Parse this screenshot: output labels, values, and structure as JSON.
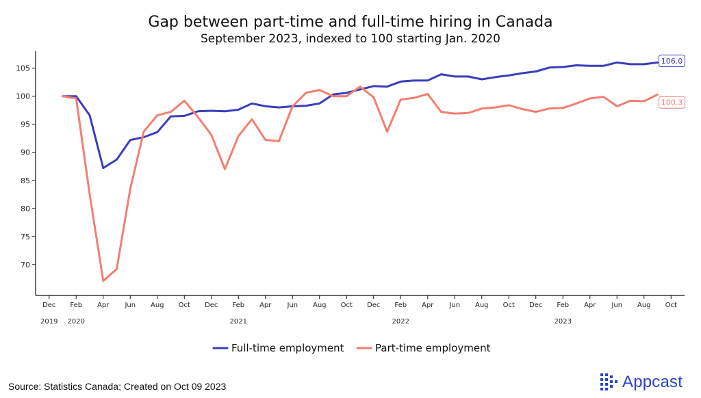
{
  "chart_data": {
    "type": "line",
    "title": "Gap between part-time and full-time hiring in Canada",
    "subtitle": "September 2023, indexed to 100 starting Jan. 2020",
    "x": [
      "2020-01",
      "2020-02",
      "2020-03",
      "2020-04",
      "2020-05",
      "2020-06",
      "2020-07",
      "2020-08",
      "2020-09",
      "2020-10",
      "2020-11",
      "2020-12",
      "2021-01",
      "2021-02",
      "2021-03",
      "2021-04",
      "2021-05",
      "2021-06",
      "2021-07",
      "2021-08",
      "2021-09",
      "2021-10",
      "2021-11",
      "2021-12",
      "2022-01",
      "2022-02",
      "2022-03",
      "2022-04",
      "2022-05",
      "2022-06",
      "2022-07",
      "2022-08",
      "2022-09",
      "2022-10",
      "2022-11",
      "2022-12",
      "2023-01",
      "2023-02",
      "2023-03",
      "2023-04",
      "2023-05",
      "2023-06",
      "2023-07",
      "2023-08",
      "2023-09"
    ],
    "series": [
      {
        "name": "Full-time employment",
        "color": "#3a3dbb",
        "values": [
          100.0,
          100.0,
          96.6,
          87.2,
          88.7,
          92.2,
          92.7,
          93.6,
          96.4,
          96.5,
          97.3,
          97.4,
          97.3,
          97.6,
          98.7,
          98.2,
          98.0,
          98.2,
          98.3,
          98.7,
          100.3,
          100.6,
          101.2,
          101.8,
          101.7,
          102.6,
          102.8,
          102.8,
          103.9,
          103.5,
          103.5,
          103.0,
          103.4,
          103.7,
          104.1,
          104.4,
          105.1,
          105.2,
          105.5,
          105.4,
          105.4,
          106.0,
          105.7,
          105.7,
          106.0
        ],
        "end_label": "106.0"
      },
      {
        "name": "Part-time employment",
        "color": "#f47e70",
        "values": [
          100.0,
          99.6,
          82.5,
          67.1,
          69.2,
          83.5,
          93.7,
          96.6,
          97.2,
          99.2,
          96.3,
          93.1,
          87.0,
          92.9,
          95.9,
          92.2,
          92.0,
          98.2,
          100.6,
          101.1,
          100.0,
          100.0,
          101.7,
          99.8,
          93.7,
          99.4,
          99.7,
          100.4,
          97.2,
          96.9,
          97.0,
          97.8,
          98.0,
          98.4,
          97.7,
          97.2,
          97.8,
          97.9,
          98.7,
          99.6,
          99.9,
          98.2,
          99.2,
          99.1,
          100.3
        ],
        "end_label": "100.3"
      }
    ],
    "x_tick_labels": [
      "Dec",
      "Feb",
      "Apr",
      "Jun",
      "Aug",
      "Oct",
      "Dec",
      "Feb",
      "Apr",
      "Jun",
      "Aug",
      "Oct",
      "Dec",
      "Feb",
      "Apr",
      "Jun",
      "Aug",
      "Oct",
      "Dec",
      "Feb",
      "Apr",
      "Jun",
      "Aug",
      "Oct"
    ],
    "x_tick_dates": [
      "2019-12",
      "2020-02",
      "2020-04",
      "2020-06",
      "2020-08",
      "2020-10",
      "2020-12",
      "2021-02",
      "2021-04",
      "2021-06",
      "2021-08",
      "2021-10",
      "2021-12",
      "2022-02",
      "2022-04",
      "2022-06",
      "2022-08",
      "2022-10",
      "2022-12",
      "2023-02",
      "2023-04",
      "2023-06",
      "2023-08",
      "2023-10"
    ],
    "year_labels": [
      {
        "text": "2019",
        "date": "2019-12"
      },
      {
        "text": "2020",
        "date": "2020-02"
      },
      {
        "text": "2021",
        "date": "2021-02"
      },
      {
        "text": "2022",
        "date": "2022-02"
      },
      {
        "text": "2023",
        "date": "2023-02"
      }
    ],
    "y_ticks": [
      70,
      75,
      80,
      85,
      90,
      95,
      100,
      105
    ],
    "ylim": [
      64.5,
      108
    ],
    "xlim": [
      "2019-11",
      "2023-11"
    ],
    "grid": false,
    "legend_placement": "bottom-center"
  },
  "source": "Source: Statistics Canada; Created on Oct 09 2023",
  "brand": {
    "name": "Appcast",
    "color": "#2b43c9"
  }
}
